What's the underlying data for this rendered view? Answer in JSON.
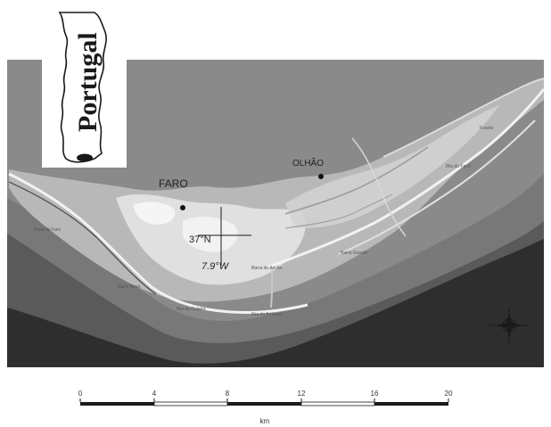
{
  "inset": {
    "country_label": "Portugal"
  },
  "places": {
    "faro": "FARO",
    "olhao": "OLHÃO"
  },
  "coordinates": {
    "lat": "37°N",
    "lon": "7.9°W"
  },
  "minor_labels": [
    "Praia de Faro",
    "Barra Nova",
    "Ilha da Culatra",
    "Ilha da Armona",
    "Fuseta",
    "Barra Grande",
    "Barra do Ancão",
    "Ilha do Farol"
  ],
  "scale_bar": {
    "ticks": [
      "0",
      "4",
      "8",
      "12",
      "16",
      "20"
    ],
    "unit": "km"
  },
  "colors": {
    "land": "#8a8a8a",
    "shelf_outer": "#2e2e2e",
    "shelf_mid": "#5a5a5a",
    "shelf_inner": "#787878",
    "lagoon": "#b8b8b8",
    "marsh": "#e6e6e6",
    "inset_bg": "#ffffff"
  }
}
